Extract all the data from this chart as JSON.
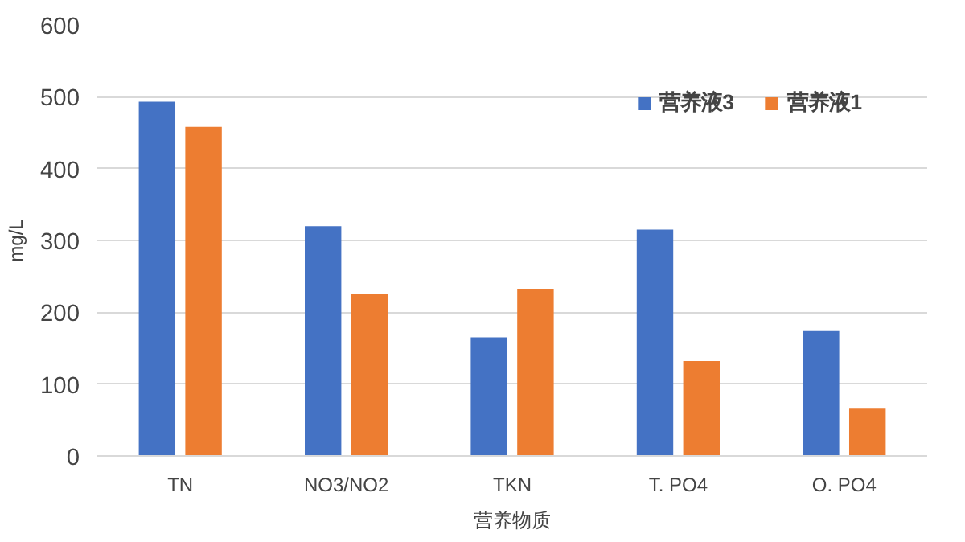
{
  "chart_data": {
    "type": "bar",
    "xlabel": "营养物质",
    "ylabel": "mg/L",
    "categories": [
      "TN",
      "NO3/NO2",
      "TKN",
      "T. PO4",
      "O. PO4"
    ],
    "series": [
      {
        "name": "营养液3",
        "color": "#4472c4",
        "values": [
          493,
          320,
          165,
          315,
          175
        ]
      },
      {
        "name": "营养液1",
        "color": "#ed7d31",
        "values": [
          458,
          226,
          232,
          132,
          67
        ]
      }
    ],
    "ylim": [
      0,
      600
    ],
    "yticks": [
      0,
      100,
      200,
      300,
      400,
      500,
      600
    ],
    "grid": "y",
    "legend": "top right"
  }
}
